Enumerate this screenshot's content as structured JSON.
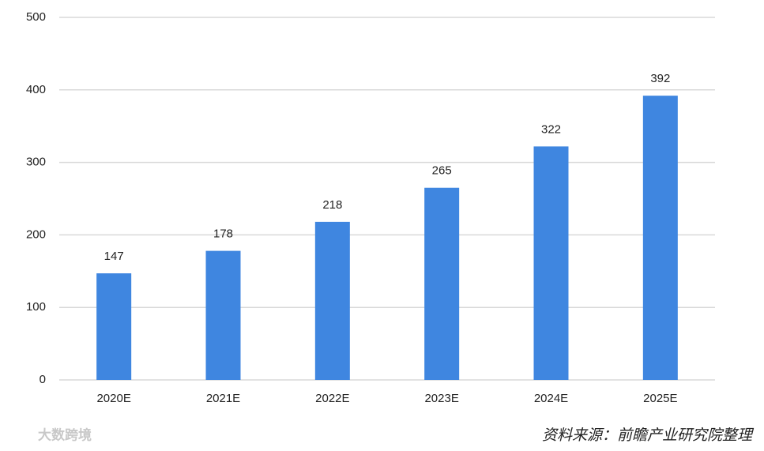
{
  "chart_data": {
    "type": "bar",
    "categories": [
      "2020E",
      "2021E",
      "2022E",
      "2023E",
      "2024E",
      "2025E"
    ],
    "values": [
      147,
      178,
      218,
      265,
      322,
      392
    ],
    "color": "#3f86e0",
    "ylim": [
      0,
      500
    ],
    "yticks": [
      0,
      100,
      200,
      300,
      400,
      500
    ],
    "grid": true,
    "source": "资料来源：前瞻产业研究院整理",
    "watermark": "大数跨境"
  }
}
